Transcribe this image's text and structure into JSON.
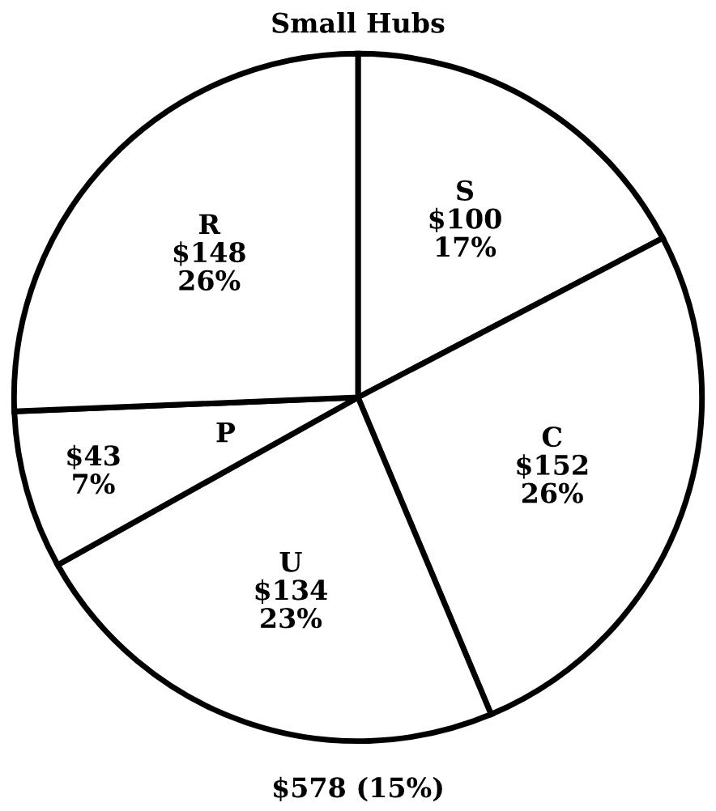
{
  "chart_data": {
    "type": "pie",
    "title": "Small Hubs",
    "categories": [
      "S",
      "C",
      "U",
      "P",
      "R"
    ],
    "values": [
      100,
      152,
      134,
      43,
      148
    ],
    "value_labels": [
      "$100\n17%",
      "$152\n26%",
      "$134\n23%",
      "$43\n7%",
      "$148\n26%"
    ],
    "colors": [
      "#ffffff",
      "#ffffff",
      "#ffffff",
      "#ffffff",
      "#ffffff"
    ],
    "annotations": [
      "$578 (15%)"
    ]
  }
}
